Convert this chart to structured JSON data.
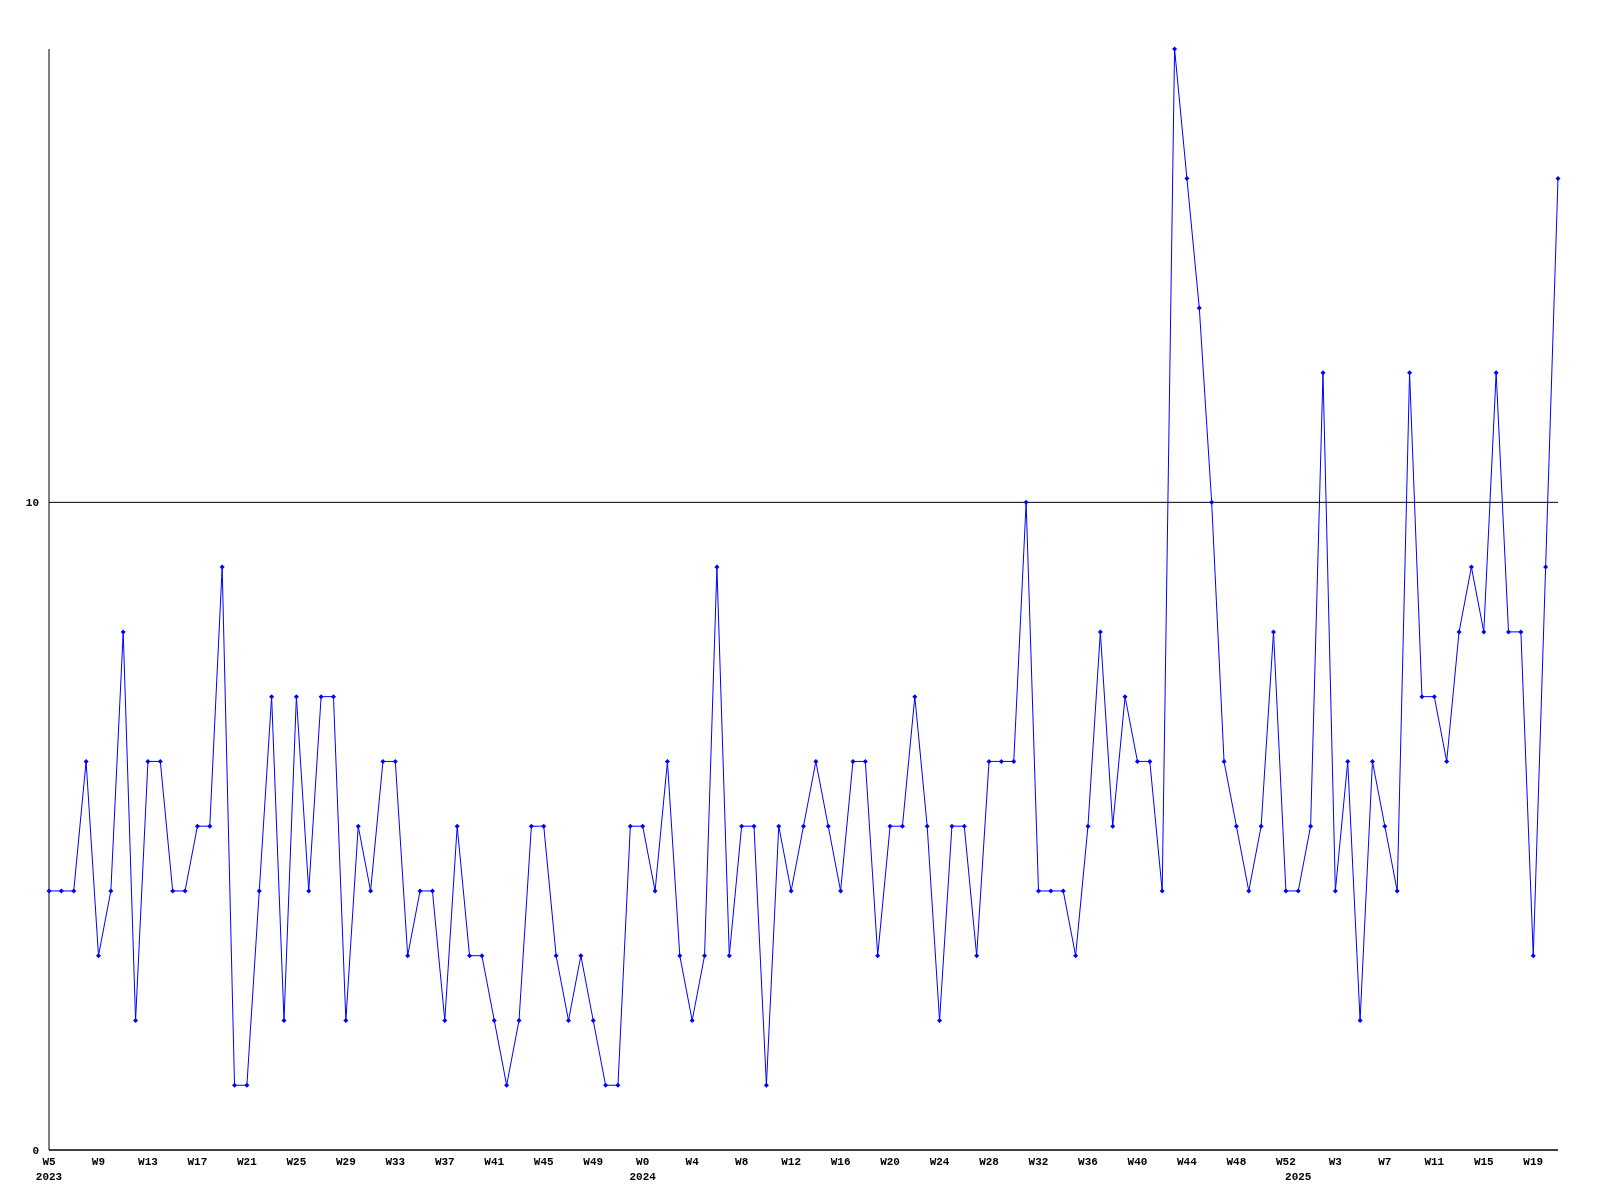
{
  "chart_data": {
    "type": "line",
    "categories": [
      "W5\n2023",
      null,
      null,
      null,
      "W9",
      null,
      null,
      null,
      "W13",
      null,
      null,
      null,
      "W17",
      null,
      null,
      null,
      "W21",
      null,
      null,
      null,
      "W25",
      null,
      null,
      null,
      "W29",
      null,
      null,
      null,
      "W33",
      null,
      null,
      null,
      "W37",
      null,
      null,
      null,
      "W41",
      null,
      null,
      null,
      "W45",
      null,
      null,
      null,
      "W49",
      null,
      null,
      null,
      "W0\n2024",
      null,
      null,
      null,
      "W4",
      null,
      null,
      null,
      "W8",
      null,
      null,
      null,
      "W12",
      null,
      null,
      null,
      "W16",
      null,
      null,
      null,
      "W20",
      null,
      null,
      null,
      "W24",
      null,
      null,
      null,
      "W28",
      null,
      null,
      null,
      "W32",
      null,
      null,
      null,
      "W36",
      null,
      null,
      null,
      "W40",
      null,
      null,
      null,
      "W44",
      null,
      null,
      null,
      "W48",
      null,
      null,
      null,
      "W52",
      "\n2025",
      null,
      null,
      "W3",
      null,
      null,
      null,
      "W7",
      null,
      null,
      null,
      "W11",
      null,
      null,
      null,
      "W15",
      null,
      null,
      null,
      "W19",
      null,
      null
    ],
    "series": [
      {
        "color": "#0000ff",
        "values": [
          4,
          4,
          4,
          6,
          3,
          4,
          8,
          2,
          6,
          6,
          4,
          4,
          5,
          5,
          9,
          1,
          1,
          4,
          7,
          2,
          7,
          4,
          7,
          7,
          2,
          5,
          4,
          6,
          6,
          3,
          4,
          4,
          2,
          5,
          3,
          3,
          2,
          1,
          2,
          5,
          5,
          3,
          2,
          3,
          2,
          1,
          1,
          5,
          5,
          4,
          6,
          3,
          2,
          3,
          9,
          3,
          5,
          5,
          1,
          5,
          4,
          5,
          6,
          5,
          4,
          6,
          6,
          3,
          5,
          5,
          7,
          5,
          2,
          5,
          5,
          3,
          6,
          6,
          6,
          10,
          4,
          4,
          4,
          3,
          5,
          8,
          5,
          7,
          6,
          6,
          4,
          17,
          15,
          13,
          10,
          6,
          5,
          4,
          5,
          8,
          4,
          4,
          5,
          12,
          4,
          6,
          2,
          6,
          5,
          4,
          12,
          7,
          7,
          6,
          8,
          9,
          8,
          12,
          8,
          8,
          3,
          9,
          15
        ]
      }
    ],
    "ylim": [
      0,
      17
    ],
    "yticks": [
      0,
      10
    ],
    "grid": "y",
    "marker": "diamond",
    "line_style": "solid"
  }
}
